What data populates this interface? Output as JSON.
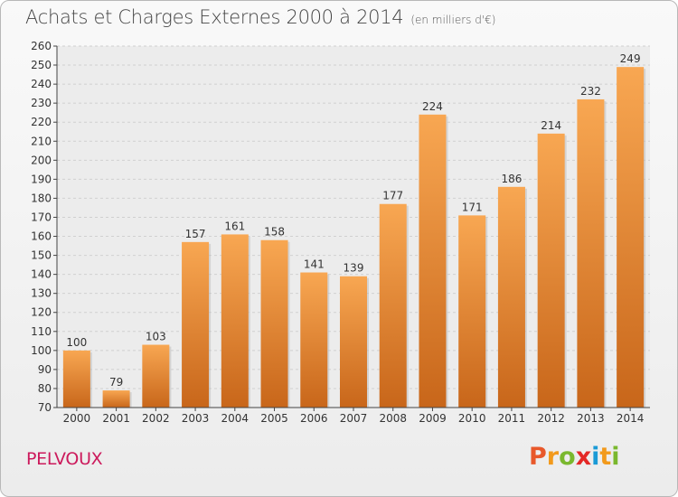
{
  "header": {
    "title": "Achats et Charges Externes 2000 à 2014",
    "subtitle": "(en milliers d'€)"
  },
  "footer": {
    "commune": "PELVOUX",
    "logo_text": "Proxiti",
    "logo_letters": [
      {
        "char": "P",
        "color": "#e8582a"
      },
      {
        "char": "r",
        "color": "#f29a1c"
      },
      {
        "char": "o",
        "color": "#7ab82e"
      },
      {
        "char": "x",
        "color": "#e42826"
      },
      {
        "char": "i",
        "color": "#1a9ad6"
      },
      {
        "char": "t",
        "color": "#f29a1c"
      },
      {
        "char": "i",
        "color": "#7ab82e"
      }
    ]
  },
  "colors": {
    "bar_top": "#f8a752",
    "bar_bottom": "#c8661a",
    "axis": "#444444",
    "grid": "#d0d0d0"
  },
  "chart_data": {
    "type": "bar",
    "title": "Achats et Charges Externes 2000 à 2014",
    "subtitle": "(en milliers d'€)",
    "categories": [
      "2000",
      "2001",
      "2002",
      "2003",
      "2004",
      "2005",
      "2006",
      "2007",
      "2008",
      "2009",
      "2010",
      "2011",
      "2012",
      "2013",
      "2014"
    ],
    "values": [
      100,
      79,
      103,
      157,
      161,
      158,
      141,
      139,
      177,
      224,
      171,
      186,
      214,
      232,
      249
    ],
    "ylim": [
      70,
      260
    ],
    "ytick_step": 10,
    "grid": true,
    "data_labels": true
  }
}
